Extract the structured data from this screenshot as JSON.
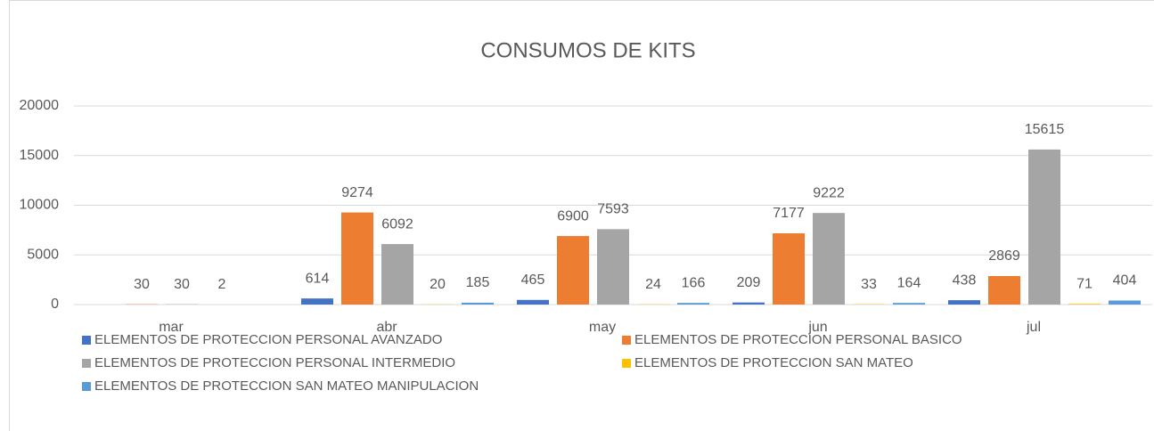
{
  "chart_data": {
    "type": "bar",
    "title": "CONSUMOS DE KITS",
    "categories": [
      "mar",
      "abr",
      "may",
      "jun",
      "jul"
    ],
    "series": [
      {
        "name": "ELEMENTOS DE PROTECCION PERSONAL AVANZADO",
        "color": "#4472c4",
        "values": [
          null,
          614,
          465,
          209,
          438
        ]
      },
      {
        "name": "ELEMENTOS DE PROTECCION PERSONAL BASICO",
        "color": "#ed7d31",
        "values": [
          30,
          9274,
          6900,
          7177,
          2869
        ]
      },
      {
        "name": "ELEMENTOS DE PROTECCION PERSONAL INTERMEDIO",
        "color": "#a5a5a5",
        "values": [
          30,
          6092,
          7593,
          9222,
          15615
        ]
      },
      {
        "name": "ELEMENTOS DE PROTECCION SAN MATEO",
        "color": "#ffc000",
        "values": [
          2,
          20,
          24,
          33,
          71
        ]
      },
      {
        "name": "ELEMENTOS DE PROTECCION SAN MATEO MANIPULACION",
        "color": "#5b9bd5",
        "values": [
          null,
          185,
          166,
          164,
          404
        ]
      }
    ],
    "ylim": [
      0,
      20000
    ],
    "yticks": [
      0,
      5000,
      10000,
      15000,
      20000
    ],
    "grid": true,
    "legend": "bottom"
  }
}
